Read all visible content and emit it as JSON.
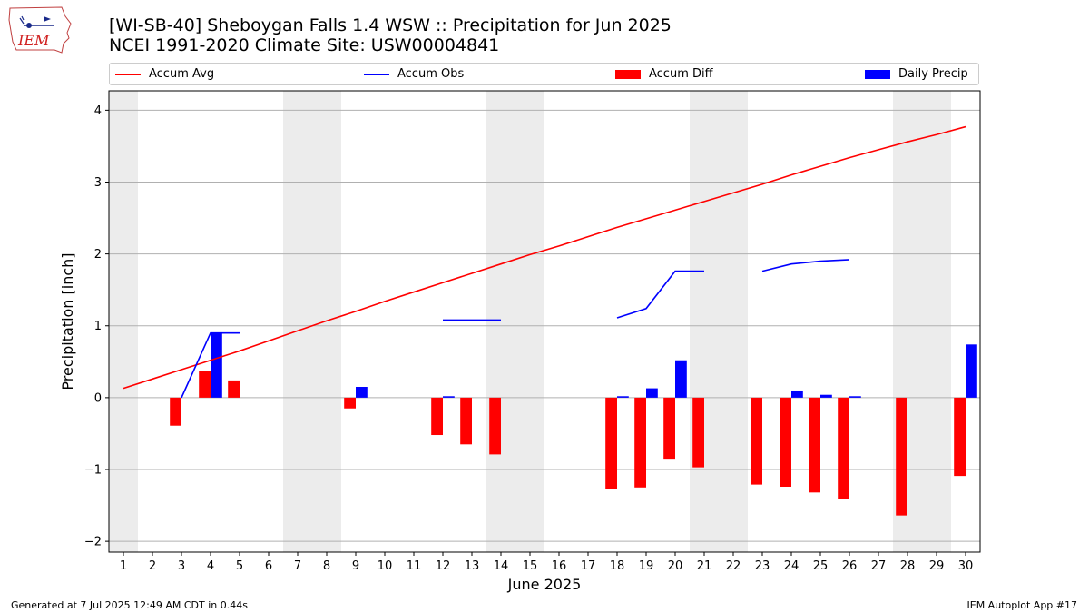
{
  "header": {
    "logo_text": "IEM",
    "title_line1": "[WI-SB-40] Sheboygan Falls 1.4 WSW :: Precipitation for Jun 2025",
    "title_line2": "NCEI 1991-2020 Climate Site: USW00004841"
  },
  "footer": {
    "generated": "Generated at 7 Jul 2025 12:49 AM CDT in 0.44s",
    "app": "IEM Autoplot App #17"
  },
  "chart_data": {
    "type": "bar",
    "title": "[WI-SB-40] Sheboygan Falls 1.4 WSW :: Precipitation for Jun 2025",
    "subtitle": "NCEI 1991-2020 Climate Site: USW00004841",
    "xlabel": "June 2025",
    "ylabel": "Precipitation [inch]",
    "xlim": [
      0.5,
      30.5
    ],
    "ylim": [
      -2.15,
      4.27
    ],
    "x_ticks": [
      1,
      2,
      3,
      4,
      5,
      6,
      7,
      8,
      9,
      10,
      11,
      12,
      13,
      14,
      15,
      16,
      17,
      18,
      19,
      20,
      21,
      22,
      23,
      24,
      25,
      26,
      27,
      28,
      29,
      30
    ],
    "y_ticks": [
      -2,
      -1,
      0,
      1,
      2,
      3,
      4
    ],
    "y_tick_labels": [
      "−2",
      "−1",
      "0",
      "1",
      "2",
      "3",
      "4"
    ],
    "grid": "horizontal",
    "legend_position": "top",
    "weekend_shading": [
      [
        0.5,
        1.5
      ],
      [
        6.5,
        8.5
      ],
      [
        13.5,
        15.5
      ],
      [
        20.5,
        22.5
      ],
      [
        27.5,
        29.5
      ]
    ],
    "legend": [
      {
        "label": "Accum Avg",
        "kind": "line",
        "color": "#ff0000"
      },
      {
        "label": "Accum Obs",
        "kind": "line",
        "color": "#0000ff"
      },
      {
        "label": "Accum Diff",
        "kind": "bar",
        "color": "#ff0000"
      },
      {
        "label": "Daily Precip",
        "kind": "bar",
        "color": "#0000ff"
      }
    ],
    "series": [
      {
        "name": "Accum Avg",
        "type": "line",
        "color": "#ff0000",
        "points": [
          [
            1,
            0.13
          ],
          [
            2,
            0.26
          ],
          [
            3,
            0.39
          ],
          [
            4,
            0.52
          ],
          [
            5,
            0.65
          ],
          [
            6,
            0.79
          ],
          [
            7,
            0.93
          ],
          [
            8,
            1.07
          ],
          [
            9,
            1.2
          ],
          [
            10,
            1.34
          ],
          [
            11,
            1.47
          ],
          [
            12,
            1.6
          ],
          [
            13,
            1.73
          ],
          [
            14,
            1.86
          ],
          [
            15,
            1.99
          ],
          [
            16,
            2.11
          ],
          [
            17,
            2.24
          ],
          [
            18,
            2.37
          ],
          [
            19,
            2.49
          ],
          [
            20,
            2.61
          ],
          [
            21,
            2.73
          ],
          [
            22,
            2.85
          ],
          [
            23,
            2.97
          ],
          [
            24,
            3.1
          ],
          [
            25,
            3.22
          ],
          [
            26,
            3.34
          ],
          [
            27,
            3.45
          ],
          [
            28,
            3.56
          ],
          [
            29,
            3.66
          ],
          [
            30,
            3.77
          ]
        ]
      },
      {
        "name": "Accum Obs",
        "type": "line",
        "color": "#0000ff",
        "segments": [
          [
            [
              3,
              0.0
            ],
            [
              4,
              0.9
            ],
            [
              5,
              0.9
            ]
          ],
          [
            [
              12,
              1.08
            ],
            [
              13,
              1.08
            ],
            [
              14,
              1.08
            ]
          ],
          [
            [
              18,
              1.11
            ],
            [
              19,
              1.24
            ],
            [
              20,
              1.76
            ],
            [
              21,
              1.76
            ]
          ],
          [
            [
              23,
              1.76
            ],
            [
              24,
              1.86
            ],
            [
              25,
              1.9
            ],
            [
              26,
              1.92
            ]
          ]
        ]
      },
      {
        "name": "Accum Diff",
        "type": "bar",
        "color": "#ff0000",
        "offset": -0.2,
        "points": [
          [
            3,
            -0.39
          ],
          [
            4,
            0.37
          ],
          [
            5,
            0.24
          ],
          [
            9,
            -0.15
          ],
          [
            12,
            -0.52
          ],
          [
            13,
            -0.65
          ],
          [
            14,
            -0.79
          ],
          [
            18,
            -1.27
          ],
          [
            19,
            -1.25
          ],
          [
            20,
            -0.85
          ],
          [
            21,
            -0.97
          ],
          [
            23,
            -1.21
          ],
          [
            24,
            -1.24
          ],
          [
            25,
            -1.32
          ],
          [
            26,
            -1.41
          ],
          [
            28,
            -1.64
          ],
          [
            30,
            -1.09
          ]
        ]
      },
      {
        "name": "Daily Precip",
        "type": "bar",
        "color": "#0000ff",
        "offset": 0.2,
        "points": [
          [
            4,
            0.9
          ],
          [
            9,
            0.15
          ],
          [
            12,
            0.02
          ],
          [
            18,
            0.02
          ],
          [
            19,
            0.13
          ],
          [
            20,
            0.52
          ],
          [
            24,
            0.1
          ],
          [
            25,
            0.04
          ],
          [
            26,
            0.02
          ],
          [
            30,
            0.74
          ]
        ]
      }
    ]
  }
}
